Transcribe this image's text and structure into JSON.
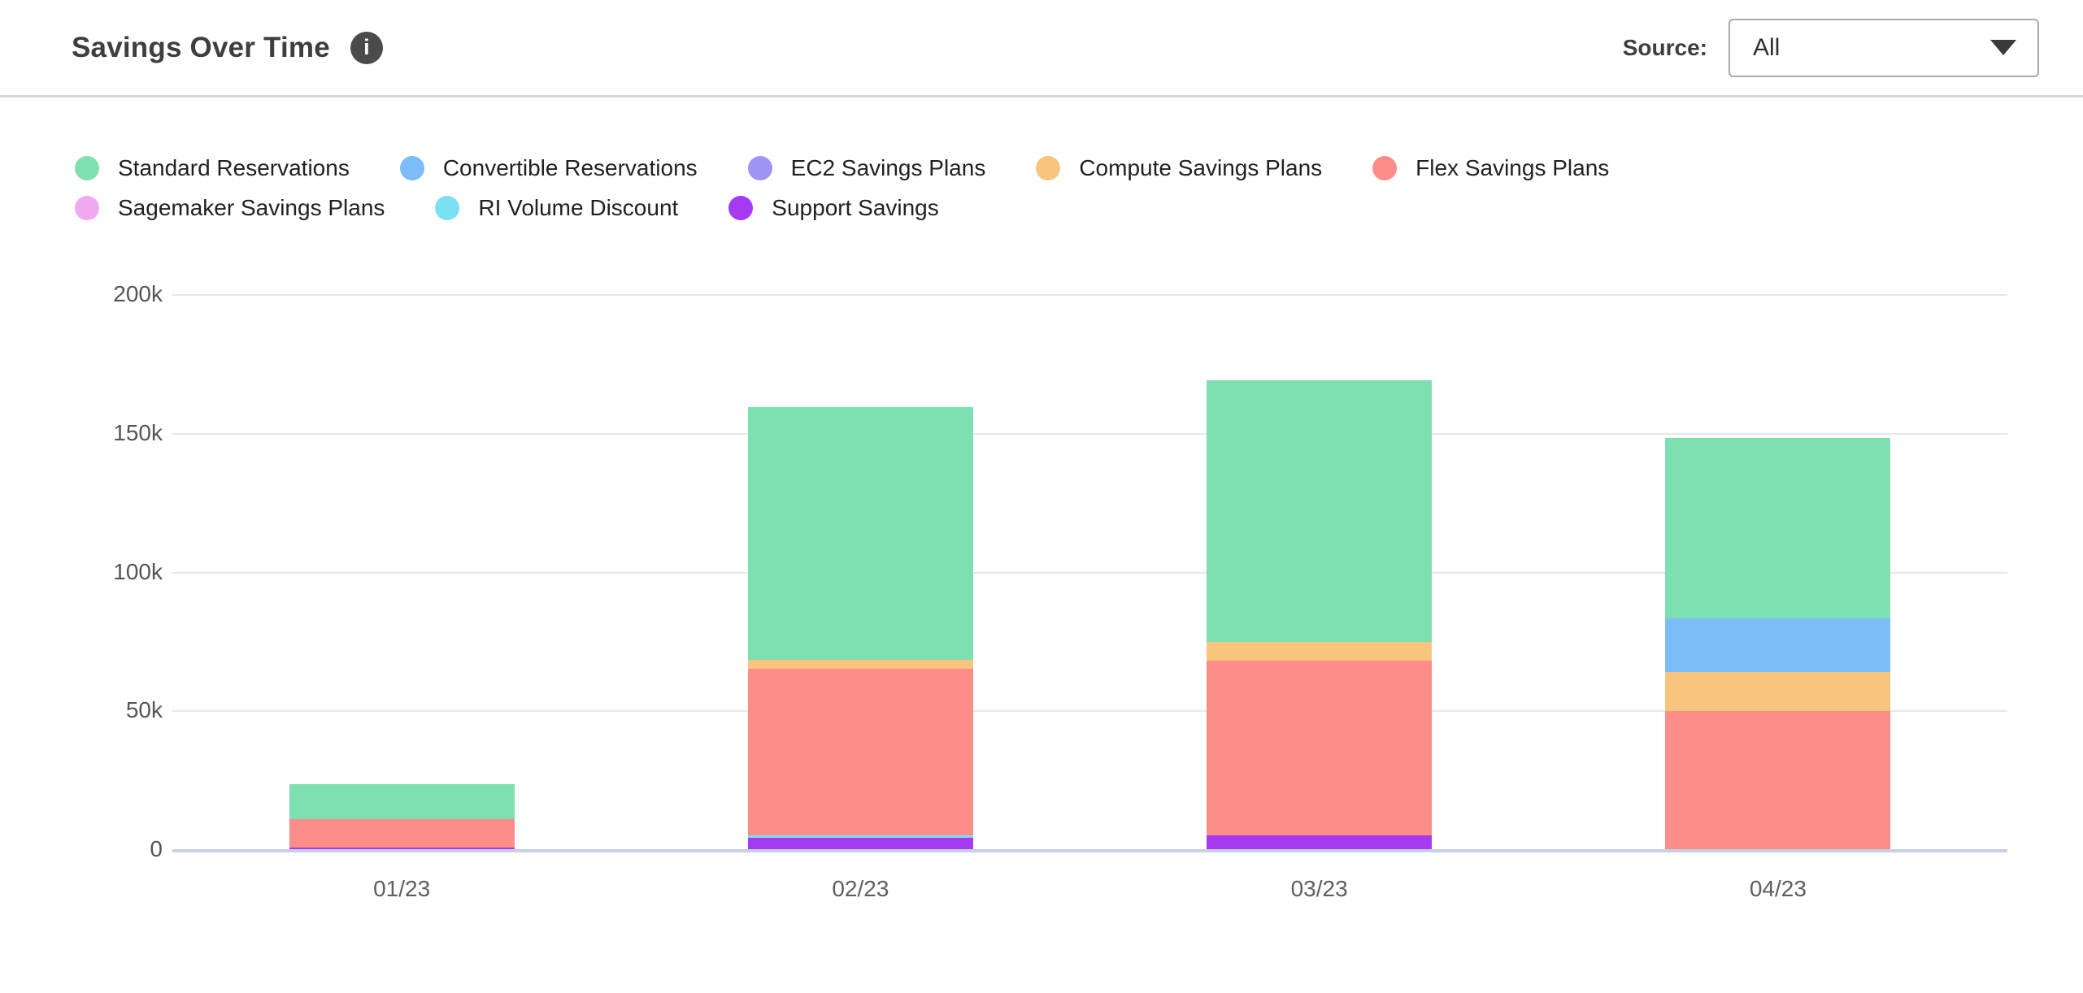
{
  "header": {
    "title": "Savings Over Time",
    "source_label": "Source:",
    "source_value": "All"
  },
  "chart_data": {
    "type": "bar",
    "stacked": true,
    "title": "Savings Over Time",
    "categories": [
      "01/23",
      "02/23",
      "03/23",
      "04/23"
    ],
    "series": [
      {
        "name": "Standard Reservations",
        "color": "#7edfb0",
        "values": [
          12.7,
          91.3,
          94.5,
          65.2
        ]
      },
      {
        "name": "Convertible Reservations",
        "color": "#7cbcf8",
        "values": [
          0,
          0,
          0,
          19.4
        ]
      },
      {
        "name": "EC2 Savings Plans",
        "color": "#9c96f2",
        "values": [
          0,
          0,
          0,
          0
        ]
      },
      {
        "name": "Compute Savings Plans",
        "color": "#f8c57e",
        "values": [
          0,
          3.2,
          6.7,
          13.8
        ]
      },
      {
        "name": "Flex Savings Plans",
        "color": "#fc8d88",
        "values": [
          10.3,
          60.0,
          63.0,
          49.9
        ]
      },
      {
        "name": "Sagemaker Savings Plans",
        "color": "#f0a9f1",
        "values": [
          0,
          0,
          0,
          0
        ]
      },
      {
        "name": "RI Volume Discount",
        "color": "#7ce0f3",
        "values": [
          0,
          0.7,
          0,
          0
        ]
      },
      {
        "name": "Support Savings",
        "color": "#a639f2",
        "values": [
          0.5,
          4.2,
          4.9,
          0
        ]
      }
    ],
    "stack_order_bottom_to_top": [
      "Support Savings",
      "RI Volume Discount",
      "Sagemaker Savings Plans",
      "Flex Savings Plans",
      "Compute Savings Plans",
      "EC2 Savings Plans",
      "Convertible Reservations",
      "Standard Reservations"
    ],
    "unit": "k (thousands)",
    "xlabel": "",
    "ylabel": "",
    "ylim": [
      0,
      200
    ],
    "y_ticks": [
      "200k",
      "150k",
      "100k",
      "50k",
      "0"
    ],
    "grid": true,
    "legend_position": "top",
    "legend_rows": [
      5,
      3
    ],
    "axis_colors": {
      "gridline": "#e7e7e7",
      "baseline": "#c9cfe6"
    }
  }
}
